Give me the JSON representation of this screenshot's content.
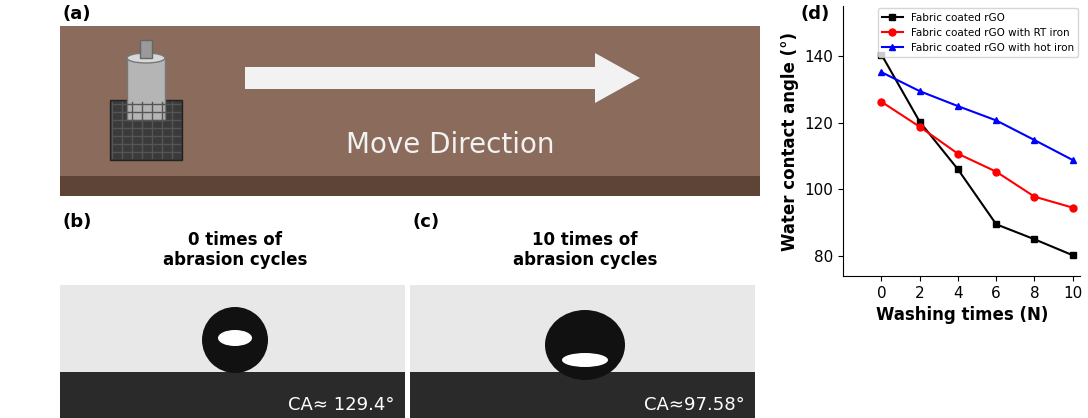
{
  "panels": [
    {
      "label": "(a)",
      "text": "Move Direction"
    },
    {
      "label": "(b)",
      "caption": "0 times of\nabrasion cycles",
      "contact_angle": "CA≈ 129.4°"
    },
    {
      "label": "(c)",
      "caption": "10 times of\nabrasion cycles",
      "contact_angle": "CA≈97.58°"
    }
  ],
  "chart_data": {
    "type": "line",
    "annotations": [
      "(d)"
    ],
    "x_label": "Washing times (N)",
    "y_label": "Water contact angle (°)",
    "x": [
      0,
      2,
      4,
      6,
      8,
      10
    ],
    "series": [
      {
        "name": "Fabric coated rGO",
        "color": "#000000",
        "marker": "square",
        "values": [
          140.5,
          120.3,
          106.0,
          89.5,
          85.0,
          80.2
        ]
      },
      {
        "name": "Fabric coated rGO with RT iron",
        "color": "#ff0000",
        "marker": "circle",
        "values": [
          126.3,
          118.8,
          110.7,
          105.3,
          97.8,
          94.5
        ]
      },
      {
        "name": "Fabric coated rGO with hot iron",
        "color": "#0000ff",
        "marker": "triangle",
        "values": [
          135.2,
          129.5,
          125.0,
          120.7,
          114.8,
          108.8
        ]
      }
    ],
    "xlim": [
      -2,
      10.4
    ],
    "ylim": [
      74,
      155
    ],
    "xticks": [
      0,
      2,
      4,
      6,
      8,
      10
    ],
    "yticks": [
      80,
      100,
      120,
      140
    ],
    "legend": "upper right",
    "grid": false
  }
}
